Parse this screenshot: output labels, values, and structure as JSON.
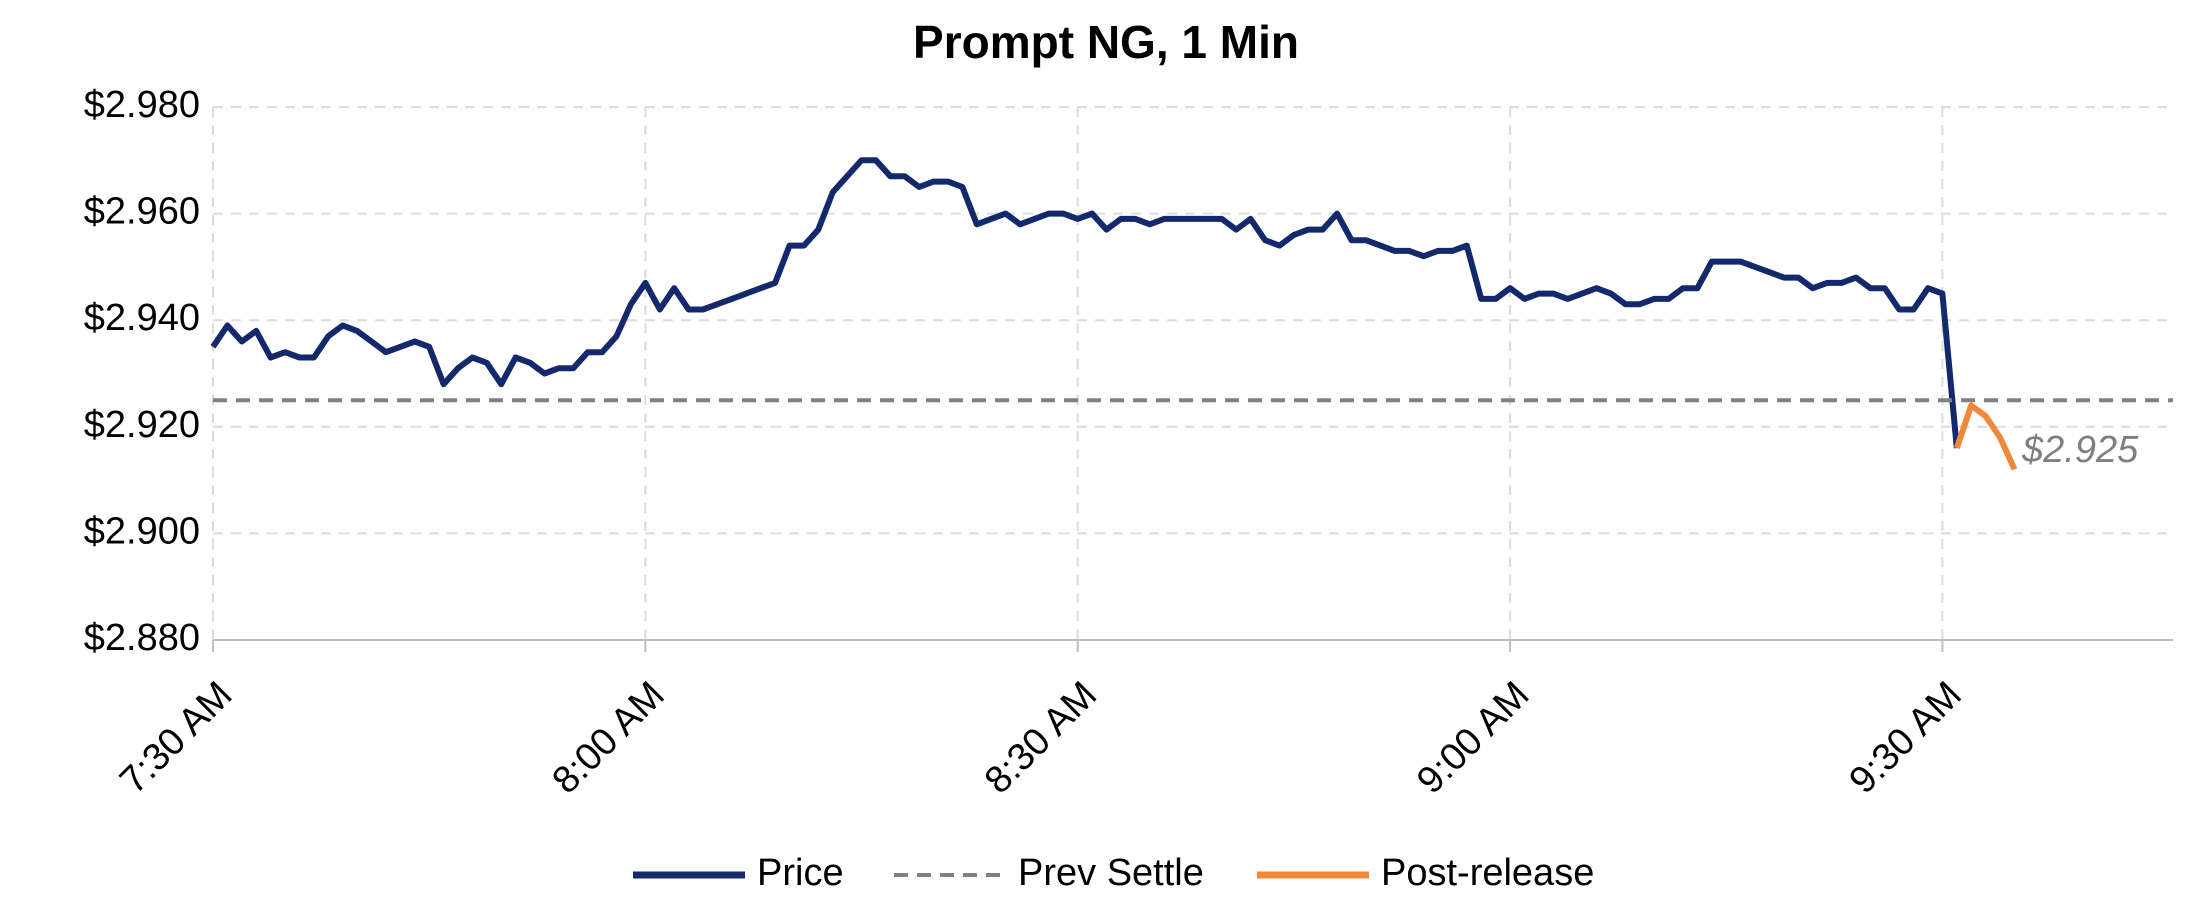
{
  "chart_data": {
    "type": "line",
    "title": "Prompt NG, 1 Min",
    "xlim": [
      0,
      136
    ],
    "xticks": [
      {
        "value": 0,
        "label": "7:30 AM"
      },
      {
        "value": 30,
        "label": "8:00 AM"
      },
      {
        "value": 60,
        "label": "8:30 AM"
      },
      {
        "value": 90,
        "label": "9:00 AM"
      },
      {
        "value": 120,
        "label": "9:30 AM"
      }
    ],
    "ylim": [
      2.88,
      2.98
    ],
    "yticks": [
      {
        "value": 2.88,
        "label": "$2.880"
      },
      {
        "value": 2.9,
        "label": "$2.900"
      },
      {
        "value": 2.92,
        "label": "$2.920"
      },
      {
        "value": 2.94,
        "label": "$2.940"
      },
      {
        "value": 2.96,
        "label": "$2.960"
      },
      {
        "value": 2.98,
        "label": "$2.980"
      }
    ],
    "grid": true,
    "legend": "bottom",
    "annotation": "$2.925",
    "series": [
      {
        "name": "Price",
        "color": "#13296b",
        "dash": false,
        "x": [
          0,
          1,
          2,
          3,
          4,
          5,
          6,
          7,
          8,
          9,
          10,
          11,
          12,
          13,
          14,
          15,
          16,
          17,
          18,
          19,
          20,
          21,
          22,
          23,
          24,
          25,
          26,
          27,
          28,
          29,
          30,
          31,
          32,
          33,
          34,
          35,
          36,
          37,
          38,
          39,
          40,
          41,
          42,
          43,
          44,
          45,
          46,
          47,
          48,
          49,
          50,
          51,
          52,
          53,
          54,
          55,
          56,
          57,
          58,
          59,
          60,
          61,
          62,
          63,
          64,
          65,
          66,
          67,
          68,
          69,
          70,
          71,
          72,
          73,
          74,
          75,
          76,
          77,
          78,
          79,
          80,
          81,
          82,
          83,
          84,
          85,
          86,
          87,
          88,
          89,
          90,
          91,
          92,
          93,
          94,
          95,
          96,
          97,
          98,
          99,
          100,
          101,
          102,
          103,
          104,
          105,
          106,
          107,
          108,
          109,
          110,
          111,
          112,
          113,
          114,
          115,
          116,
          117,
          118,
          119,
          120,
          121
        ],
        "values": [
          2.935,
          2.939,
          2.936,
          2.938,
          2.933,
          2.934,
          2.933,
          2.933,
          2.937,
          2.939,
          2.938,
          2.936,
          2.934,
          2.935,
          2.936,
          2.935,
          2.928,
          2.931,
          2.933,
          2.932,
          2.928,
          2.933,
          2.932,
          2.93,
          2.931,
          2.931,
          2.934,
          2.934,
          2.937,
          2.943,
          2.947,
          2.942,
          2.946,
          2.942,
          2.942,
          2.943,
          2.944,
          2.945,
          2.946,
          2.947,
          2.954,
          2.954,
          2.957,
          2.964,
          2.967,
          2.97,
          2.97,
          2.967,
          2.967,
          2.965,
          2.966,
          2.966,
          2.965,
          2.958,
          2.959,
          2.96,
          2.958,
          2.959,
          2.96,
          2.96,
          2.959,
          2.96,
          2.957,
          2.959,
          2.959,
          2.958,
          2.959,
          2.959,
          2.959,
          2.959,
          2.959,
          2.957,
          2.959,
          2.955,
          2.954,
          2.956,
          2.957,
          2.957,
          2.96,
          2.955,
          2.955,
          2.954,
          2.953,
          2.953,
          2.952,
          2.953,
          2.953,
          2.954,
          2.944,
          2.944,
          2.946,
          2.944,
          2.945,
          2.945,
          2.944,
          2.945,
          2.946,
          2.945,
          2.943,
          2.943,
          2.944,
          2.944,
          2.946,
          2.946,
          2.951,
          2.951,
          2.951,
          2.95,
          2.949,
          2.948,
          2.948,
          2.946,
          2.947,
          2.947,
          2.948,
          2.946,
          2.946,
          2.942,
          2.942,
          2.946,
          2.945,
          2.916
        ]
      },
      {
        "name": "Prev Settle",
        "color": "#808080",
        "dash": true,
        "x": [
          0,
          136
        ],
        "values": [
          2.925,
          2.925
        ]
      },
      {
        "name": "Post-release",
        "color": "#f0883a",
        "dash": false,
        "x": [
          121,
          122,
          123,
          124,
          125
        ],
        "values": [
          2.916,
          2.924,
          2.922,
          2.918,
          2.912
        ]
      }
    ]
  }
}
